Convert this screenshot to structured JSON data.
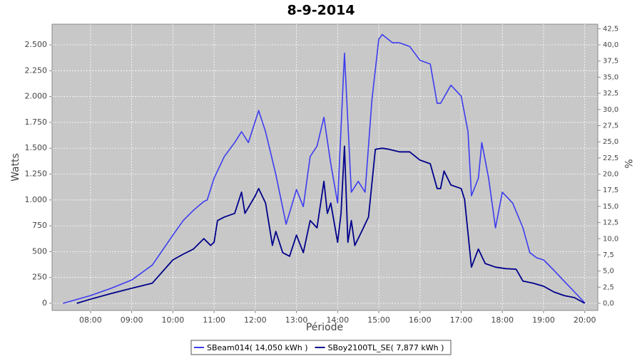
{
  "chart_data": {
    "type": "line",
    "title": "8-9-2014",
    "xlabel": "Période",
    "ylabel": "Watts",
    "y2label": "%",
    "xlim": [
      "07:04",
      "20:19"
    ],
    "xticks": [
      "08:00",
      "09:00",
      "10:00",
      "11:00",
      "12:00",
      "13:00",
      "14:00",
      "15:00",
      "16:00",
      "17:00",
      "18:00",
      "19:00",
      "20:00"
    ],
    "ylim": [
      -69,
      2700
    ],
    "yticks": [
      0,
      250,
      500,
      750,
      {
        "value": 1000,
        "label": "1.000"
      },
      {
        "value": 1250,
        "label": "1.250"
      },
      {
        "value": 1500,
        "label": "1.500"
      },
      {
        "value": 1750,
        "label": "1.750"
      },
      {
        "value": 2000,
        "label": "2.000"
      },
      {
        "value": 2250,
        "label": "2.250"
      },
      {
        "value": 2500,
        "label": "2.500"
      }
    ],
    "y2lim": [
      -1.1,
      43.2
    ],
    "y2ticks": [
      {
        "value": 0,
        "label": "0,0"
      },
      {
        "value": 2.5,
        "label": "2,5"
      },
      {
        "value": 5,
        "label": "5,0"
      },
      {
        "value": 7.5,
        "label": "7,5"
      },
      {
        "value": 10,
        "label": "10,0"
      },
      {
        "value": 12.5,
        "label": "12,5"
      },
      {
        "value": 15,
        "label": "15,0"
      },
      {
        "value": 17.5,
        "label": "17,5"
      },
      {
        "value": 20,
        "label": "20,0"
      },
      {
        "value": 22.5,
        "label": "22,5"
      },
      {
        "value": 25,
        "label": "25,0"
      },
      {
        "value": 27.5,
        "label": "27,5"
      },
      {
        "value": 30,
        "label": "30,0"
      },
      {
        "value": 32.5,
        "label": "32,5"
      },
      {
        "value": 35,
        "label": "35,0"
      },
      {
        "value": 37.5,
        "label": "37,5"
      },
      {
        "value": 40,
        "label": "40,0"
      },
      {
        "value": 42.5,
        "label": "42,5"
      }
    ],
    "grid": true,
    "series": [
      {
        "name": "SBeam014( 14,050 kWh )",
        "color": "#3c3cf0",
        "x": [
          "07:20",
          "08:00",
          "08:30",
          "09:00",
          "09:30",
          "10:00",
          "10:15",
          "10:30",
          "10:45",
          "10:50",
          "11:00",
          "11:15",
          "11:30",
          "11:40",
          "11:50",
          "12:05",
          "12:15",
          "12:30",
          "12:45",
          "13:00",
          "13:10",
          "13:20",
          "13:30",
          "13:40",
          "13:50",
          "14:00",
          "14:10",
          "14:20",
          "14:30",
          "14:40",
          "14:50",
          "15:00",
          "15:05",
          "15:20",
          "15:30",
          "15:45",
          "16:00",
          "16:15",
          "16:25",
          "16:30",
          "16:45",
          "17:00",
          "17:10",
          "17:15",
          "17:25",
          "17:30",
          "17:40",
          "17:50",
          "18:00",
          "18:15",
          "18:30",
          "18:40",
          "18:50",
          "19:00",
          "19:15",
          "19:30",
          "19:45",
          "20:00"
        ],
        "values": [
          0,
          75,
          145,
          225,
          370,
          660,
          800,
          900,
          985,
          1000,
          1210,
          1420,
          1555,
          1660,
          1555,
          1865,
          1660,
          1245,
          765,
          1100,
          935,
          1420,
          1520,
          1800,
          1350,
          970,
          2420,
          1075,
          1180,
          1075,
          1970,
          2555,
          2600,
          2520,
          2520,
          2485,
          2350,
          2315,
          1935,
          1935,
          2110,
          2005,
          1660,
          1040,
          1210,
          1555,
          1210,
          730,
          1075,
          970,
          730,
          490,
          440,
          420,
          320,
          215,
          110,
          5
        ]
      },
      {
        "name": "SBoy2100TL_SE( 7,877 kWh )",
        "color": "#00008b",
        "x": [
          "07:40",
          "08:00",
          "08:30",
          "09:00",
          "09:30",
          "10:00",
          "10:15",
          "10:30",
          "10:45",
          "10:55",
          "11:00",
          "11:05",
          "11:15",
          "11:30",
          "11:40",
          "11:45",
          "12:00",
          "12:05",
          "12:15",
          "12:25",
          "12:30",
          "12:40",
          "12:50",
          "13:00",
          "13:10",
          "13:20",
          "13:30",
          "13:40",
          "13:45",
          "13:50",
          "14:00",
          "14:05",
          "14:10",
          "14:15",
          "14:20",
          "14:25",
          "14:35",
          "14:45",
          "14:55",
          "15:05",
          "15:15",
          "15:30",
          "15:45",
          "16:00",
          "16:15",
          "16:25",
          "16:30",
          "16:35",
          "16:45",
          "17:00",
          "17:05",
          "17:15",
          "17:25",
          "17:35",
          "17:50",
          "18:05",
          "18:20",
          "18:30",
          "18:45",
          "19:00",
          "19:15",
          "19:30",
          "19:45",
          "20:00"
        ],
        "values": [
          0,
          40,
          95,
          145,
          195,
          420,
          475,
          525,
          625,
          560,
          590,
          800,
          835,
          870,
          1075,
          870,
          1040,
          1110,
          970,
          560,
          695,
          490,
          455,
          660,
          490,
          800,
          730,
          1180,
          870,
          970,
          590,
          870,
          1520,
          590,
          800,
          560,
          695,
          835,
          1490,
          1500,
          1490,
          1465,
          1465,
          1385,
          1350,
          1110,
          1110,
          1280,
          1145,
          1110,
          1005,
          350,
          525,
          385,
          350,
          335,
          330,
          215,
          195,
          165,
          110,
          75,
          55,
          0
        ]
      }
    ]
  }
}
